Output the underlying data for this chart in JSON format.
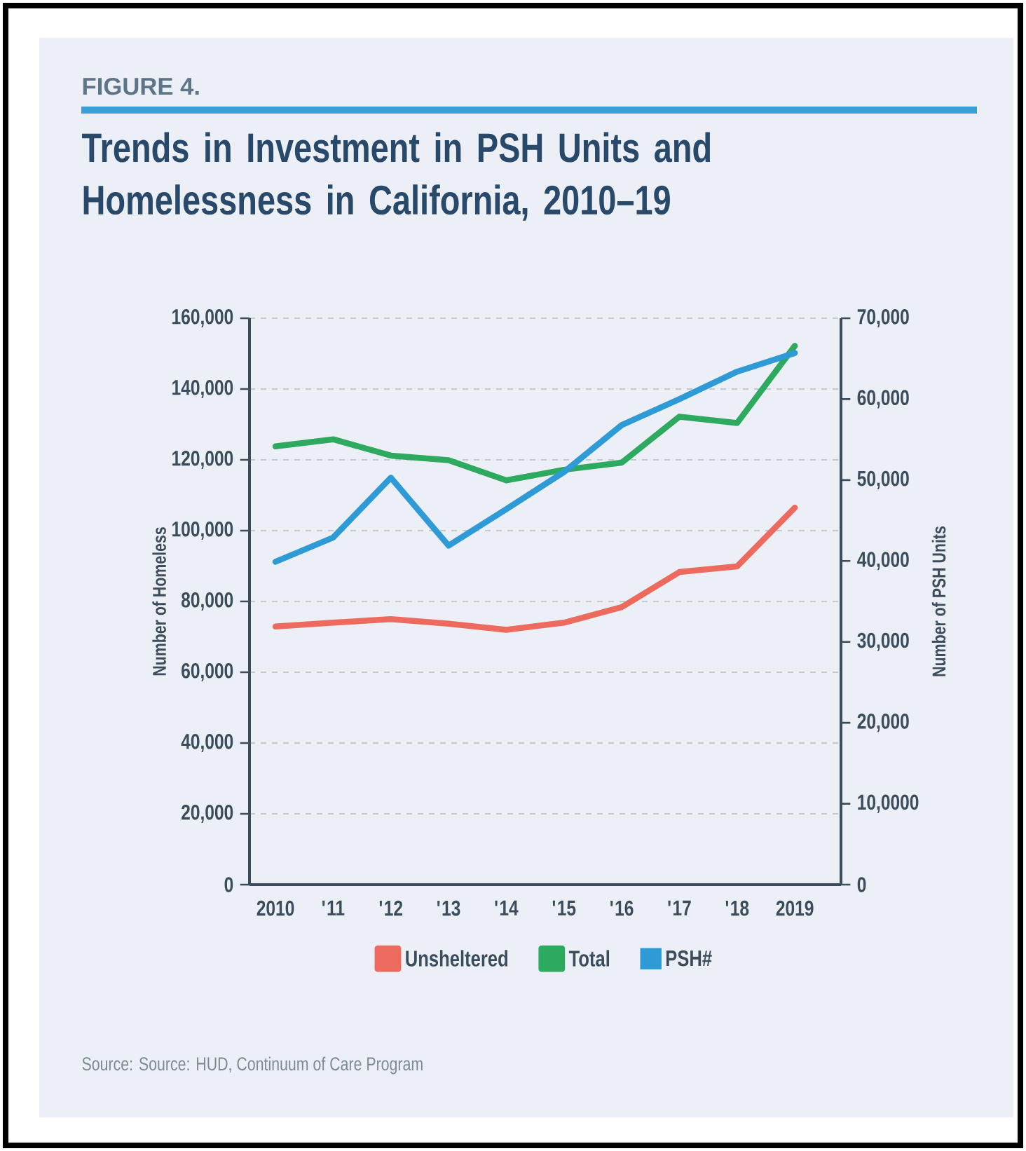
{
  "chart_data": {
    "type": "line",
    "title": "Trends in Investment in PSH Units and Homelessness in California, 2010–19",
    "categories": [
      "2010",
      "'11",
      "'12",
      "'13",
      "'14",
      "'15",
      "'16",
      "'17",
      "'18",
      "2019"
    ],
    "series": [
      {
        "name": "Unsheltered",
        "color": "#ec6b5e",
        "values": [
          72900,
          74000,
          75000,
          73700,
          72000,
          74000,
          78400,
          88300,
          89900,
          106500
        ]
      },
      {
        "name": "Total",
        "color": "#2eaa60",
        "values": [
          123800,
          125800,
          121200,
          119900,
          114200,
          117200,
          119200,
          132200,
          130400,
          152200
        ]
      },
      {
        "name": "PSH#",
        "color": "#2f9bd6",
        "axis": "y2",
        "values": [
          39900,
          42900,
          50300,
          41900,
          46400,
          51000,
          56800,
          60000,
          63400,
          65700
        ]
      }
    ],
    "ylabel": "Number of Homeless",
    "y2label": "Number of PSH Units",
    "ylim": [
      0,
      160000
    ],
    "yticks": [
      0,
      {
        "value": 20000,
        "label": "20,000"
      },
      {
        "value": 40000,
        "label": "40,000"
      },
      {
        "value": 60000,
        "label": "60,000"
      },
      {
        "value": 80000,
        "label": "80,000"
      },
      {
        "value": 100000,
        "label": "100,000"
      },
      {
        "value": 120000,
        "label": "120,000"
      },
      {
        "value": 140000,
        "label": "140,000"
      },
      {
        "value": 160000,
        "label": "160,000"
      }
    ],
    "y2lim": [
      0,
      70000
    ],
    "y2ticks": [
      0,
      {
        "value": 10000,
        "label": "10,0000"
      },
      {
        "value": 20000,
        "label": "20,000"
      },
      {
        "value": 30000,
        "label": "30,000"
      },
      {
        "value": 40000,
        "label": "40,000"
      },
      {
        "value": 50000,
        "label": "50,000"
      },
      {
        "value": 60000,
        "label": "60,000"
      },
      {
        "value": 70000,
        "label": "70,000"
      }
    ],
    "grid": "y",
    "legend": "bottom",
    "annotations": [
      "FIGURE 4.",
      "Source: Source: HUD, Continuum of Care Program"
    ]
  }
}
